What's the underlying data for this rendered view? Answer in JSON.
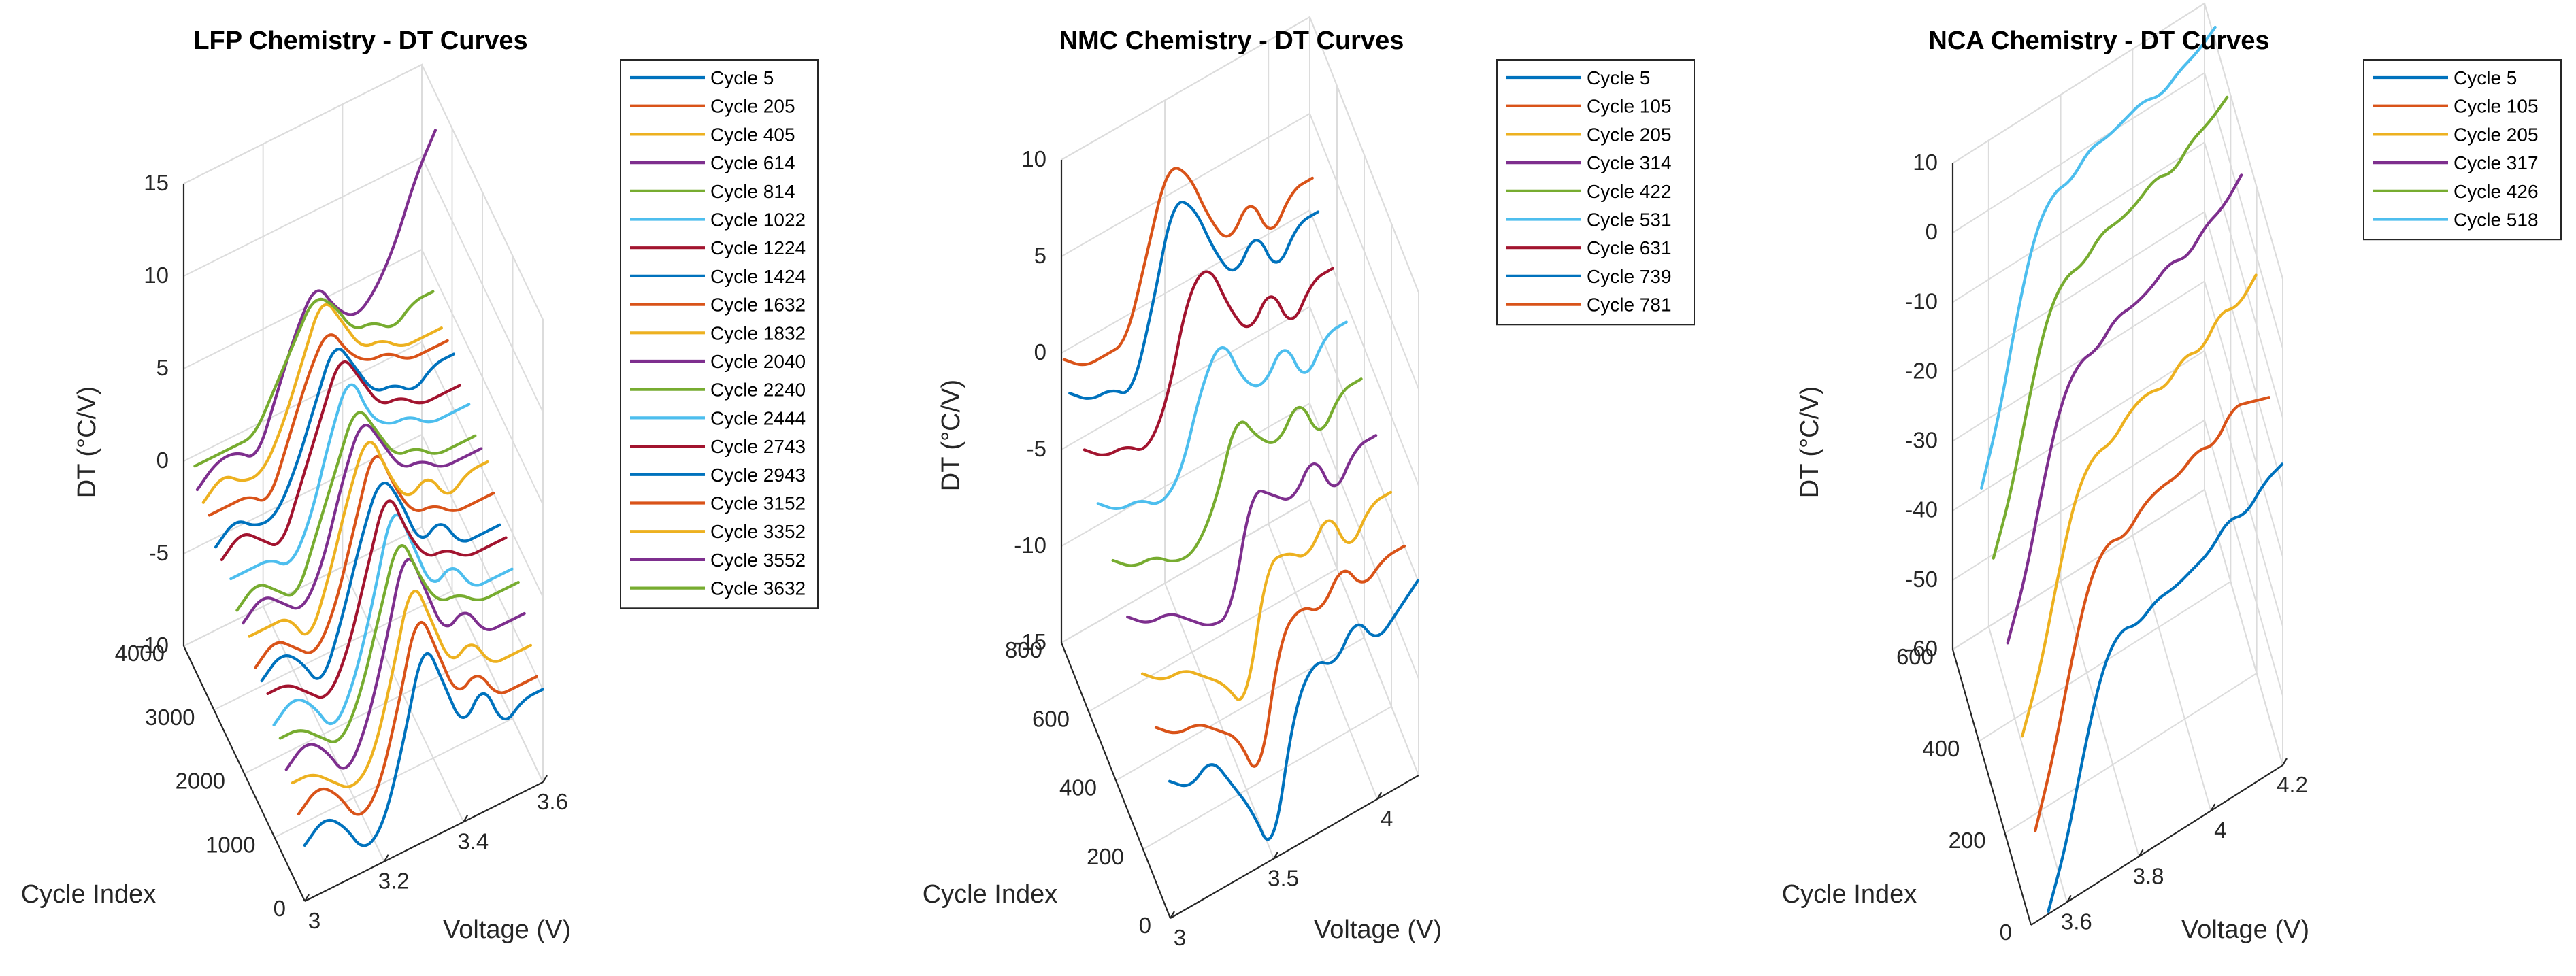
{
  "palette": [
    "#0072BD",
    "#D95319",
    "#EDB120",
    "#7E2F8E",
    "#77AC30",
    "#4DBEEE",
    "#A2142F"
  ],
  "chart_data": [
    {
      "type": "line",
      "title": "LFP Chemistry - DT Curves",
      "xlabel": "Voltage (V)",
      "ylabel": "Cycle Index",
      "zlabel": "DT (°C/V)",
      "xlim": [
        3.0,
        3.6
      ],
      "ylim": [
        0,
        4000
      ],
      "zlim": [
        -10,
        15
      ],
      "xticks": [
        3,
        3.2,
        3.4,
        3.6
      ],
      "xtick_labels": [
        "3",
        "3.2",
        "3.4",
        "3.6"
      ],
      "yticks": [
        0,
        1000,
        2000,
        3000,
        4000
      ],
      "ytick_labels": [
        "0",
        "1000",
        "2000",
        "3000",
        "4000"
      ],
      "zticks": [
        -10,
        -5,
        0,
        5,
        10,
        15
      ],
      "ztick_labels": [
        "-10",
        "-5",
        "0",
        "5",
        "10",
        "15"
      ],
      "legend_position": "top-right, outside",
      "series": [
        {
          "name": "Cycle 5",
          "cycle": 5
        },
        {
          "name": "Cycle 205",
          "cycle": 205
        },
        {
          "name": "Cycle 405",
          "cycle": 405
        },
        {
          "name": "Cycle 614",
          "cycle": 614
        },
        {
          "name": "Cycle 814",
          "cycle": 814
        },
        {
          "name": "Cycle 1022",
          "cycle": 1022
        },
        {
          "name": "Cycle 1224",
          "cycle": 1224
        },
        {
          "name": "Cycle 1424",
          "cycle": 1424
        },
        {
          "name": "Cycle 1632",
          "cycle": 1632
        },
        {
          "name": "Cycle 1832",
          "cycle": 1832
        },
        {
          "name": "Cycle 2040",
          "cycle": 2040
        },
        {
          "name": "Cycle 2240",
          "cycle": 2240
        },
        {
          "name": "Cycle 2444",
          "cycle": 2444
        },
        {
          "name": "Cycle 2743",
          "cycle": 2743
        },
        {
          "name": "Cycle 2943",
          "cycle": 2943
        },
        {
          "name": "Cycle 3152",
          "cycle": 3152
        },
        {
          "name": "Cycle 3352",
          "cycle": 3352
        },
        {
          "name": "Cycle 3552",
          "cycle": 3552
        },
        {
          "name": "Cycle 3632",
          "cycle": 3632
        }
      ],
      "voltage_samples": [
        3.0,
        3.05,
        3.1,
        3.15,
        3.2,
        3.25,
        3.3,
        3.35,
        3.4,
        3.45,
        3.5,
        3.55,
        3.6
      ],
      "dt_profiles": [
        [
          -7,
          -6,
          -7,
          -9,
          -8,
          -4,
          1,
          -2,
          -5,
          -3,
          -6,
          -5,
          -5
        ],
        [
          -6,
          -5,
          -6,
          -8,
          -7,
          -3,
          2,
          -1,
          -4,
          -3,
          -5,
          -5,
          -5
        ],
        [
          -5,
          -5,
          -6,
          -7,
          -6,
          -2,
          3,
          0,
          -3,
          -2,
          -4,
          -4,
          -4
        ],
        [
          -5,
          -4,
          -5,
          -7,
          -5,
          -1,
          4,
          1,
          -2,
          -1,
          -3,
          -3,
          -3
        ],
        [
          -4,
          -4,
          -5,
          -6,
          -4,
          0,
          4,
          1,
          -1,
          -1,
          -2,
          -2,
          -2
        ],
        [
          -4,
          -3,
          -4,
          -6,
          -4,
          0,
          5,
          2,
          -1,
          0,
          -2,
          -2,
          -2
        ],
        [
          -3,
          -3,
          -4,
          -5,
          -3,
          1,
          5,
          2,
          0,
          0,
          -1,
          -1,
          -1
        ],
        [
          -3,
          -2,
          -3,
          -5,
          -2,
          2,
          5,
          3,
          0,
          1,
          -1,
          -1,
          -1
        ],
        [
          -3,
          -2,
          -3,
          -4,
          -2,
          2,
          6,
          3,
          1,
          1,
          0,
          0,
          0
        ],
        [
          -2,
          -2,
          -2,
          -4,
          -1,
          3,
          6,
          3,
          1,
          2,
          0,
          1,
          1
        ],
        [
          -2,
          -1,
          -2,
          -3,
          -1,
          3,
          6,
          4,
          2,
          2,
          1,
          1,
          1
        ],
        [
          -2,
          -1,
          -2,
          -3,
          0,
          3,
          6,
          4,
          2,
          2,
          1,
          1,
          1
        ],
        [
          -1,
          -1,
          -1,
          -2,
          0,
          4,
          7,
          4,
          3,
          3,
          2,
          2,
          2
        ],
        [
          -1,
          0,
          -1,
          -2,
          1,
          4,
          7,
          5,
          3,
          3,
          2,
          2,
          2
        ],
        [
          -1,
          0,
          -1,
          -1,
          1,
          4,
          7,
          5,
          3,
          3,
          2,
          3,
          3
        ],
        [
          0,
          0,
          0,
          -1,
          2,
          5,
          7,
          5,
          4,
          4,
          3,
          3,
          3
        ],
        [
          0,
          1,
          0,
          0,
          2,
          5,
          8,
          6,
          4,
          4,
          3,
          3,
          3
        ],
        [
          0,
          1,
          1,
          0,
          3,
          6,
          8,
          6,
          5,
          6,
          8,
          11,
          13
        ],
        [
          1,
          1,
          1,
          1,
          3,
          5,
          7,
          6,
          4,
          4,
          3,
          4,
          4
        ]
      ]
    },
    {
      "type": "line",
      "title": "NMC Chemistry - DT Curves",
      "xlabel": "Voltage (V)",
      "ylabel": "Cycle Index",
      "zlabel": "DT (°C/V)",
      "xlim": [
        3.0,
        4.2
      ],
      "ylim": [
        0,
        800
      ],
      "zlim": [
        -15,
        10
      ],
      "xticks": [
        3,
        3.5,
        4
      ],
      "xtick_labels": [
        "3",
        "3.5",
        "4"
      ],
      "yticks": [
        0,
        200,
        400,
        600,
        800
      ],
      "ytick_labels": [
        "0",
        "200",
        "400",
        "600",
        "800"
      ],
      "zticks": [
        -15,
        -10,
        -5,
        0,
        5,
        10
      ],
      "ztick_labels": [
        "-15",
        "-10",
        "-5",
        "0",
        "5",
        "10"
      ],
      "legend_position": "top-right, outside",
      "series": [
        {
          "name": "Cycle 5",
          "cycle": 5
        },
        {
          "name": "Cycle 105",
          "cycle": 105
        },
        {
          "name": "Cycle 205",
          "cycle": 205
        },
        {
          "name": "Cycle 314",
          "cycle": 314
        },
        {
          "name": "Cycle 422",
          "cycle": 422
        },
        {
          "name": "Cycle 531",
          "cycle": 531
        },
        {
          "name": "Cycle 631",
          "cycle": 631
        },
        {
          "name": "Cycle 739",
          "cycle": 739
        },
        {
          "name": "Cycle 781",
          "cycle": 781
        }
      ],
      "voltage_samples": [
        3.0,
        3.1,
        3.2,
        3.3,
        3.4,
        3.5,
        3.6,
        3.7,
        3.8,
        3.9,
        4.0,
        4.1,
        4.2
      ],
      "dt_profiles": [
        [
          -8,
          -9,
          -8,
          -10,
          -12,
          -15,
          -8,
          -6,
          -7,
          -5,
          -7,
          -6,
          -5
        ],
        [
          -7,
          -8,
          -8,
          -9,
          -10,
          -13,
          -6,
          -5,
          -6,
          -4,
          -6,
          -5,
          -5
        ],
        [
          -6,
          -7,
          -7,
          -8,
          -9,
          -11,
          -4,
          -4,
          -5,
          -3,
          -6,
          -4,
          -4
        ],
        [
          -5,
          -6,
          -6,
          -7,
          -8,
          -8,
          -2,
          -3,
          -4,
          -2,
          -5,
          -3,
          -3
        ],
        [
          -4,
          -5,
          -5,
          -6,
          -6,
          -4,
          0,
          -2,
          -3,
          -1,
          -4,
          -2,
          -2
        ],
        [
          -3,
          -4,
          -4,
          -5,
          -4,
          0,
          2,
          -1,
          -2,
          0,
          -3,
          -1,
          -1
        ],
        [
          -2,
          -3,
          -3,
          -4,
          -2,
          3,
          4,
          1,
          -1,
          1,
          -2,
          0,
          0
        ],
        [
          -1,
          -2,
          -2,
          -3,
          1,
          6,
          5,
          2,
          0,
          2,
          -1,
          1,
          1
        ],
        [
          0,
          -1,
          -1,
          -1,
          3,
          7,
          6,
          3,
          1,
          3,
          0,
          2,
          2
        ]
      ]
    },
    {
      "type": "line",
      "title": "NCA Chemistry - DT Curves",
      "xlabel": "Voltage (V)",
      "ylabel": "Cycle Index",
      "zlabel": "DT (°C/V)",
      "xlim": [
        3.5,
        4.2
      ],
      "ylim": [
        0,
        600
      ],
      "zlim": [
        -60,
        10
      ],
      "xticks": [
        3.6,
        3.8,
        4,
        4.2
      ],
      "xtick_labels": [
        "3.6",
        "3.8",
        "4",
        "4.2"
      ],
      "yticks": [
        0,
        200,
        400,
        600
      ],
      "ytick_labels": [
        "0",
        "200",
        "400",
        "600"
      ],
      "zticks": [
        -60,
        -50,
        -40,
        -30,
        -20,
        -10,
        0,
        10
      ],
      "ztick_labels": [
        "-60",
        "-50",
        "-40",
        "-30",
        "-20",
        "-10",
        "0",
        "10"
      ],
      "legend_position": "top-right, outside",
      "series": [
        {
          "name": "Cycle 5",
          "cycle": 5
        },
        {
          "name": "Cycle 105",
          "cycle": 105
        },
        {
          "name": "Cycle 205",
          "cycle": 205
        },
        {
          "name": "Cycle 317",
          "cycle": 317
        },
        {
          "name": "Cycle 426",
          "cycle": 426
        },
        {
          "name": "Cycle 518",
          "cycle": 518
        }
      ],
      "voltage_samples": [
        3.55,
        3.6,
        3.65,
        3.7,
        3.75,
        3.8,
        3.85,
        3.9,
        3.95,
        4.0,
        4.05,
        4.1,
        4.15,
        4.2
      ],
      "dt_profiles": [
        [
          -60,
          -52,
          -40,
          -30,
          -26,
          -27,
          -25,
          -25,
          -24,
          -23,
          -20,
          -21,
          -18,
          -17
        ],
        [
          -55,
          -46,
          -34,
          -24,
          -20,
          -21,
          -18,
          -17,
          -17,
          -15,
          -16,
          -12,
          -13,
          -14
        ],
        [
          -48,
          -40,
          -28,
          -18,
          -14,
          -14,
          -11,
          -10,
          -11,
          -8,
          -9,
          -5,
          -6,
          -3
        ],
        [
          -42,
          -34,
          -22,
          -12,
          -8,
          -8,
          -5,
          -5,
          -4,
          -2,
          -3,
          0,
          1,
          4
        ],
        [
          -37,
          -29,
          -17,
          -7,
          -3,
          -3,
          0,
          0,
          1,
          3,
          2,
          5,
          6,
          8
        ],
        [
          -33,
          -24,
          -11,
          -1,
          3,
          3,
          6,
          6,
          7,
          8,
          7,
          9,
          10,
          12
        ]
      ]
    }
  ]
}
